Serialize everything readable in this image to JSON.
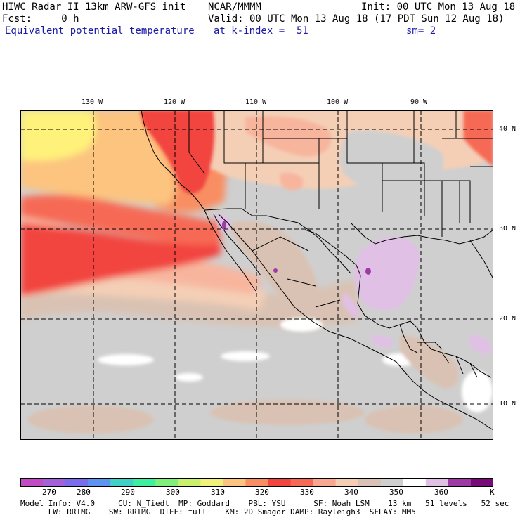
{
  "header": {
    "line1_left": "HIWC Radar II 13km ARW-GFS init",
    "line1_mid": "NCAR/MMMM",
    "line1_right": "Init: 00 UTC Mon 13 Aug 18",
    "line2_left": "Fcst:     0 h",
    "line2_right": "Valid: 00 UTC Mon 13 Aug 18 (17 PDT Sun 12 Aug 18)",
    "line3_left": "Equivalent potential temperature",
    "line3_mid": "at k-index =  51",
    "line3_right": "sm= 2"
  },
  "map": {
    "lon_labels": [
      "130 W",
      "120 W",
      "110 W",
      "100 W",
      "90 W"
    ],
    "lat_labels": [
      "40 N",
      "30 N",
      "20 N",
      "10 N"
    ],
    "colors": {
      "yellow": "#fff27a",
      "light_orange": "#fcc47f",
      "orange": "#f98e62",
      "red_orange": "#f66a55",
      "red": "#f2453f",
      "salmon": "#f8b59e",
      "peach": "#f4cfb6",
      "tan": "#d9c2b3",
      "gray": "#cfcfcf",
      "white": "#ffffff",
      "lavender": "#e1c0e6",
      "purple": "#9e3aa6"
    }
  },
  "colorbar": {
    "unit": "K",
    "labels": [
      "270",
      "280",
      "290",
      "300",
      "310",
      "320",
      "330",
      "340",
      "350",
      "360"
    ],
    "colors": [
      "#c14bc4",
      "#a462d9",
      "#7b6cec",
      "#5b95f0",
      "#3fd1c5",
      "#3fef9f",
      "#7ff07a",
      "#c8f06c",
      "#f0f07a",
      "#fcc47f",
      "#f98e62",
      "#f2453f",
      "#f66a55",
      "#f8a890",
      "#f4cfb6",
      "#d9c2b3",
      "#cfcfcf",
      "#ffffff",
      "#e1c0e6",
      "#9e3aa6",
      "#7a0a7a"
    ]
  },
  "footer": {
    "line1": "Model Info: V4.0     CU: N_Tiedt  MP: Goddard    PBL: YSU      SF: Noah LSM    13 km   51 levels   52 sec",
    "line2": "      LW: RRTMG    SW: RRTMG  DIFF: full    KM: 2D Smagor DAMP: Rayleigh3  SFLAY: MM5"
  }
}
